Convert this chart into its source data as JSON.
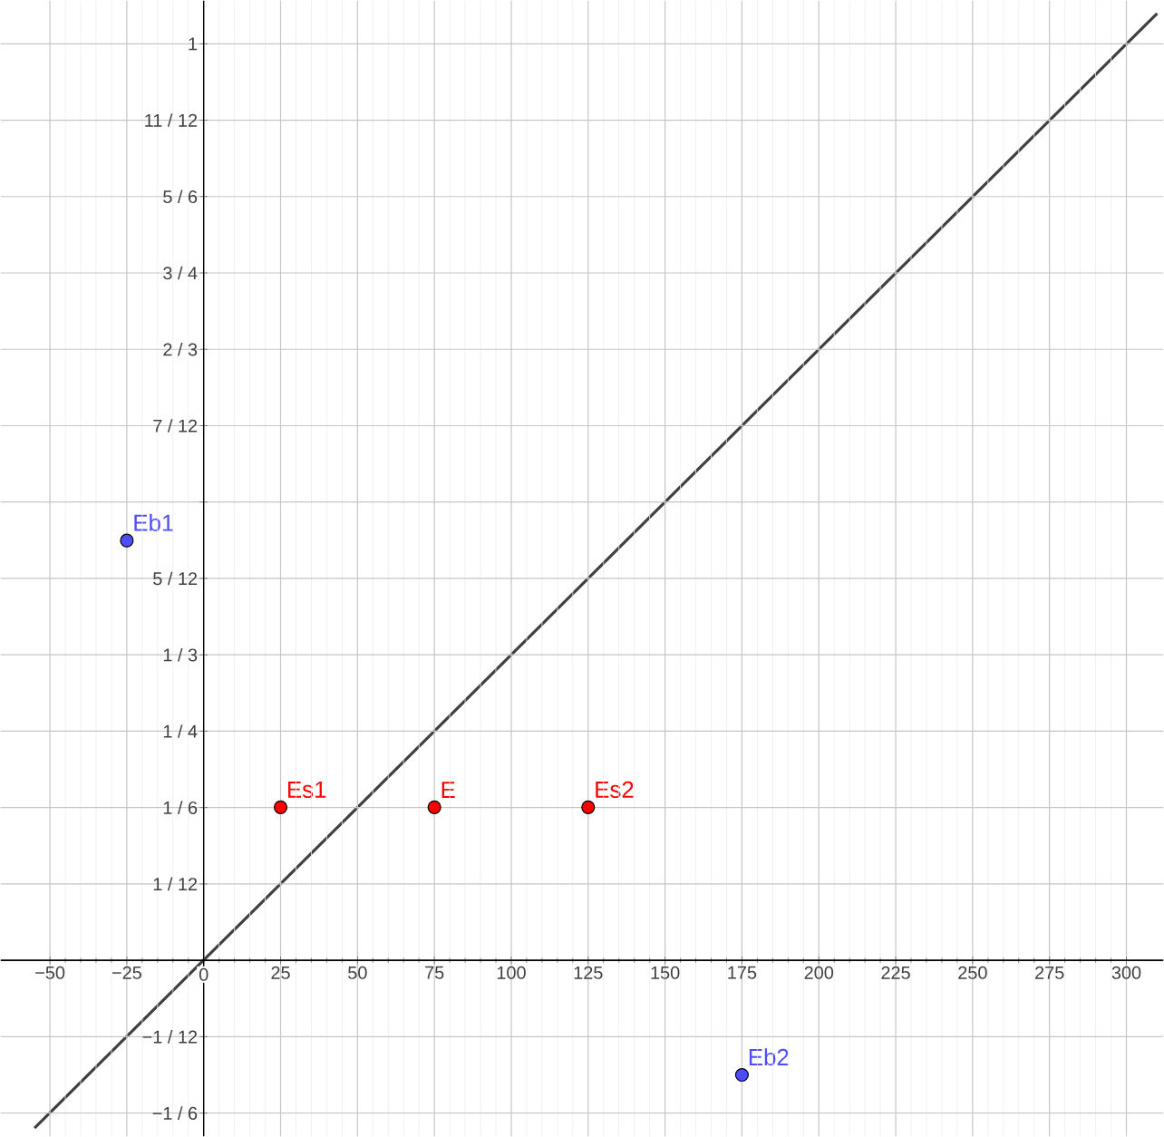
{
  "chart_data": {
    "type": "scatter",
    "xlim": [
      -66,
      312
    ],
    "ylim": [
      -0.192,
      1.047
    ],
    "xticks": [
      {
        "value": -50,
        "label": "−50"
      },
      {
        "value": -25,
        "label": "−25"
      },
      0,
      25,
      50,
      75,
      100,
      125,
      150,
      175,
      200,
      225,
      250,
      275,
      300
    ],
    "yticks": [
      {
        "value": -0.16667,
        "label": "−1 / 6"
      },
      {
        "value": -0.08333,
        "label": "−1 / 12"
      },
      {
        "value": 0.08333,
        "label": "1 / 12"
      },
      {
        "value": 0.16667,
        "label": "1 / 6"
      },
      {
        "value": 0.25,
        "label": "1 / 4"
      },
      {
        "value": 0.33333,
        "label": "1 / 3"
      },
      {
        "value": 0.41667,
        "label": "5 / 12"
      },
      {
        "value": 0.5,
        "label": null
      },
      {
        "value": 0.58333,
        "label": "7 / 12"
      },
      {
        "value": 0.66667,
        "label": "2 / 3"
      },
      {
        "value": 0.75,
        "label": "3 / 4"
      },
      {
        "value": 0.83333,
        "label": "5 / 6"
      },
      {
        "value": 0.91667,
        "label": "11 / 12"
      },
      {
        "value": 1,
        "label": "1"
      }
    ],
    "grid": true,
    "series": [
      {
        "type": "line",
        "marker": "none",
        "color": "#404040",
        "x": [
          -55,
          310
        ],
        "values": [
          -0.183,
          1.033
        ]
      },
      {
        "name": "Eb1",
        "marker": "circle",
        "color": "#4d4dff",
        "x": [
          -25
        ],
        "values": [
          0.458
        ]
      },
      {
        "name": "Es1",
        "marker": "circle",
        "color": "#ff0000",
        "x": [
          25
        ],
        "values": [
          0.167
        ]
      },
      {
        "name": "E",
        "marker": "circle",
        "color": "#ff0000",
        "x": [
          75
        ],
        "values": [
          0.167
        ]
      },
      {
        "name": "Es2",
        "marker": "circle",
        "color": "#ff0000",
        "x": [
          125
        ],
        "values": [
          0.167
        ]
      },
      {
        "name": "Eb2",
        "marker": "circle",
        "color": "#4d4dff",
        "x": [
          175
        ],
        "values": [
          -0.125
        ]
      }
    ]
  }
}
